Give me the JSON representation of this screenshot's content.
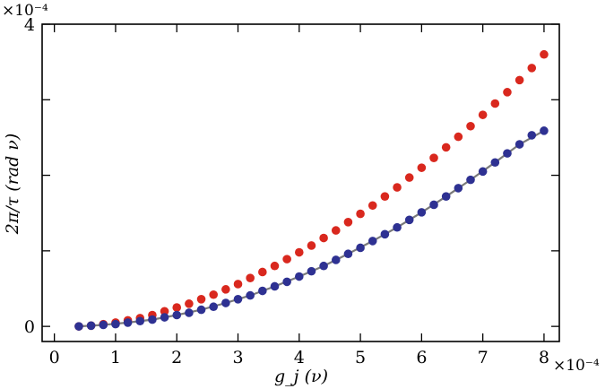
{
  "chart_data": {
    "type": "scatter",
    "xlabel": "g_j (ν)",
    "ylabel": "2π/τ (rad ν)",
    "x_multiplier": "×10⁻⁴",
    "y_multiplier": "×10⁻⁴",
    "xlim": [
      -0.2,
      8.25
    ],
    "ylim": [
      -0.2,
      4.0
    ],
    "x_ticks": [
      0,
      1,
      2,
      3,
      4,
      5,
      6,
      7,
      8
    ],
    "x_tick_labels": [
      "0",
      "1",
      "2",
      "3",
      "4",
      "5",
      "6",
      "7",
      "8"
    ],
    "y_ticks": [
      0,
      1,
      2,
      3,
      4
    ],
    "y_tick_labels": [
      "0",
      "",
      "",
      "",
      "4"
    ],
    "grid": false,
    "series": [
      {
        "marker": "circle",
        "color": "#d9281e",
        "x": [
          0.4,
          0.6,
          0.8,
          1.0,
          1.2,
          1.4,
          1.6,
          1.8,
          2.0,
          2.2,
          2.4,
          2.6,
          2.8,
          3.0,
          3.2,
          3.4,
          3.6,
          3.8,
          4.0,
          4.2,
          4.4,
          4.6,
          4.8,
          5.0,
          5.2,
          5.4,
          5.6,
          5.8,
          6.0,
          6.2,
          6.4,
          6.6,
          6.8,
          7.0,
          7.2,
          7.4,
          7.6,
          7.8,
          8.0
        ],
        "y": [
          0.0,
          0.01,
          0.03,
          0.05,
          0.08,
          0.11,
          0.15,
          0.2,
          0.25,
          0.3,
          0.36,
          0.42,
          0.49,
          0.56,
          0.64,
          0.72,
          0.8,
          0.89,
          0.98,
          1.07,
          1.17,
          1.27,
          1.38,
          1.49,
          1.6,
          1.72,
          1.84,
          1.97,
          2.1,
          2.23,
          2.37,
          2.51,
          2.65,
          2.8,
          2.95,
          3.1,
          3.26,
          3.42,
          3.6
        ]
      },
      {
        "marker": "circle",
        "color": "#2e3192",
        "x": [
          0.4,
          0.6,
          0.8,
          1.0,
          1.2,
          1.4,
          1.6,
          1.8,
          2.0,
          2.2,
          2.4,
          2.6,
          2.8,
          3.0,
          3.2,
          3.4,
          3.6,
          3.8,
          4.0,
          4.2,
          4.4,
          4.6,
          4.8,
          5.0,
          5.2,
          5.4,
          5.6,
          5.8,
          6.0,
          6.2,
          6.4,
          6.6,
          6.8,
          7.0,
          7.2,
          7.4,
          7.6,
          7.8,
          8.0
        ],
        "y": [
          0.0,
          0.01,
          0.02,
          0.03,
          0.05,
          0.07,
          0.09,
          0.12,
          0.15,
          0.18,
          0.22,
          0.26,
          0.31,
          0.36,
          0.41,
          0.47,
          0.53,
          0.59,
          0.66,
          0.73,
          0.8,
          0.88,
          0.96,
          1.04,
          1.13,
          1.22,
          1.31,
          1.41,
          1.51,
          1.61,
          1.72,
          1.83,
          1.94,
          2.05,
          2.17,
          2.29,
          2.41,
          2.53,
          2.59
        ]
      }
    ],
    "fit_line": {
      "color": "#7a7a7a",
      "x": [
        0.4,
        0.8,
        1.2,
        1.6,
        2.0,
        2.4,
        2.8,
        3.2,
        3.6,
        4.0,
        4.4,
        4.8,
        5.2,
        5.6,
        6.0,
        6.4,
        6.8,
        7.2,
        7.6,
        8.0
      ],
      "y": [
        0.0,
        0.02,
        0.05,
        0.09,
        0.15,
        0.22,
        0.31,
        0.41,
        0.53,
        0.66,
        0.8,
        0.96,
        1.13,
        1.31,
        1.51,
        1.72,
        1.94,
        2.17,
        2.41,
        2.59
      ]
    }
  }
}
